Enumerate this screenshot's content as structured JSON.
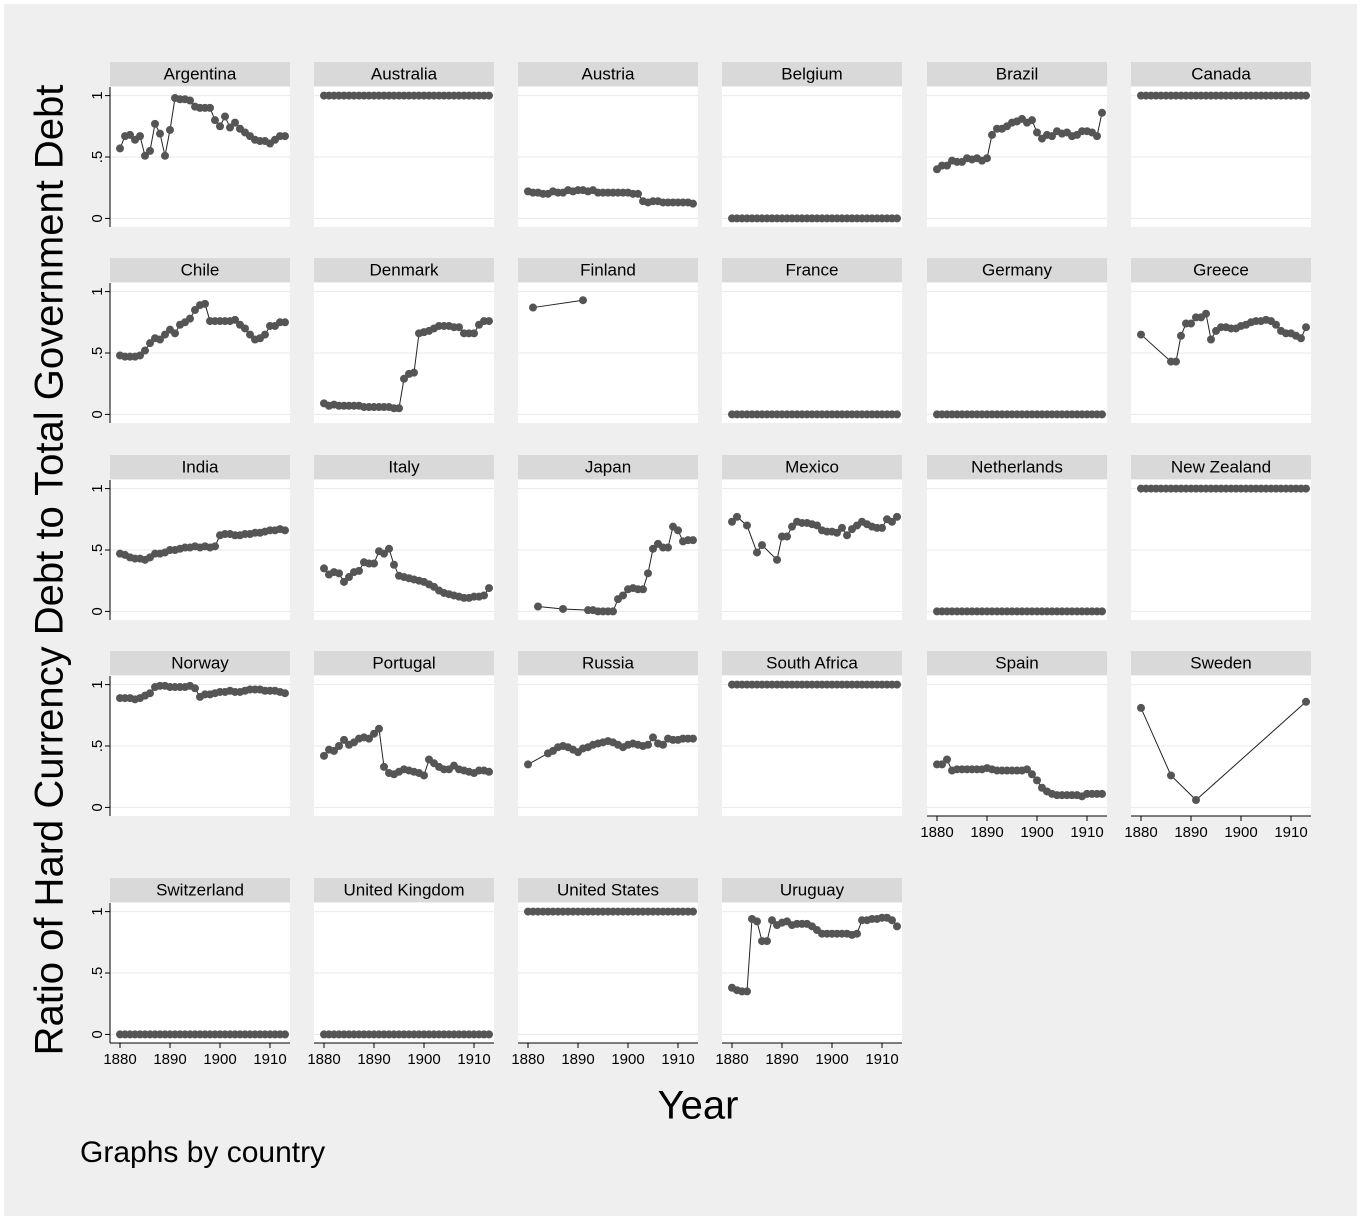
{
  "chart_data": {
    "type": "line",
    "ytitle": "Ratio of Hard Currency Debt to Total Government Debt",
    "xtitle": "Year",
    "note": "Graphs by country",
    "color": "#555555",
    "line_color": "#222222",
    "markers": true,
    "grid": true,
    "xlim": [
      1878,
      1914
    ],
    "ylim": [
      -0.07,
      1.07
    ],
    "xticks": [
      1880,
      1890,
      1900,
      1910
    ],
    "yticks": [
      0,
      {
        "value": 0.5,
        "label": ".5"
      },
      1
    ],
    "x": [
      1880,
      1881,
      1882,
      1883,
      1884,
      1885,
      1886,
      1887,
      1888,
      1889,
      1890,
      1891,
      1892,
      1893,
      1894,
      1895,
      1896,
      1897,
      1898,
      1899,
      1900,
      1901,
      1902,
      1903,
      1904,
      1905,
      1906,
      1907,
      1908,
      1909,
      1910,
      1911,
      1912,
      1913
    ],
    "panels": [
      {
        "title": "Argentina",
        "values": [
          0.57,
          0.67,
          0.68,
          0.64,
          0.67,
          0.51,
          0.55,
          0.77,
          0.69,
          0.51,
          0.72,
          0.98,
          0.97,
          0.97,
          0.96,
          0.91,
          0.9,
          0.9,
          0.9,
          0.8,
          0.75,
          0.83,
          0.74,
          0.78,
          0.73,
          0.7,
          0.67,
          0.64,
          0.63,
          0.63,
          0.61,
          0.64,
          0.67,
          0.67
        ]
      },
      {
        "title": "Australia",
        "values": [
          1,
          1,
          1,
          1,
          1,
          1,
          1,
          1,
          1,
          1,
          1,
          1,
          1,
          1,
          1,
          1,
          1,
          1,
          1,
          1,
          1,
          1,
          1,
          1,
          1,
          1,
          1,
          1,
          1,
          1,
          1,
          1,
          1,
          1
        ]
      },
      {
        "title": "Austria",
        "values": [
          0.22,
          0.21,
          0.21,
          0.2,
          0.2,
          0.22,
          0.21,
          0.21,
          0.23,
          0.22,
          0.23,
          0.23,
          0.22,
          0.23,
          0.21,
          0.21,
          0.21,
          0.21,
          0.21,
          0.21,
          0.21,
          0.2,
          0.2,
          0.14,
          0.13,
          0.14,
          0.14,
          0.13,
          0.13,
          0.13,
          0.13,
          0.13,
          0.13,
          0.12
        ]
      },
      {
        "title": "Belgium",
        "values": [
          0,
          0,
          0,
          0,
          0,
          0,
          0,
          0,
          0,
          0,
          0,
          0,
          0,
          0,
          0,
          0,
          0,
          0,
          0,
          0,
          0,
          0,
          0,
          0,
          0,
          0,
          0,
          0,
          0,
          0,
          0,
          0,
          0,
          0
        ]
      },
      {
        "title": "Brazil",
        "values": [
          0.4,
          0.43,
          0.43,
          0.47,
          0.46,
          0.46,
          0.49,
          0.48,
          0.49,
          0.47,
          0.49,
          0.68,
          0.73,
          0.73,
          0.75,
          0.78,
          0.79,
          0.81,
          0.78,
          0.8,
          0.7,
          0.65,
          0.68,
          0.67,
          0.71,
          0.69,
          0.7,
          0.67,
          0.68,
          0.71,
          0.71,
          0.7,
          0.67,
          0.86
        ]
      },
      {
        "title": "Canada",
        "values": [
          1,
          1,
          1,
          1,
          1,
          1,
          1,
          1,
          1,
          1,
          1,
          1,
          1,
          1,
          1,
          1,
          1,
          1,
          1,
          1,
          1,
          1,
          1,
          1,
          1,
          1,
          1,
          1,
          1,
          1,
          1,
          1,
          1,
          1
        ]
      },
      {
        "title": "Chile",
        "values": [
          0.48,
          0.47,
          0.47,
          0.47,
          0.48,
          0.52,
          0.58,
          0.62,
          0.61,
          0.65,
          0.69,
          0.66,
          0.73,
          0.75,
          0.78,
          0.85,
          0.89,
          0.9,
          0.76,
          0.76,
          0.76,
          0.76,
          0.76,
          0.77,
          0.73,
          0.7,
          0.65,
          0.61,
          0.62,
          0.65,
          0.72,
          0.72,
          0.75,
          0.75
        ]
      },
      {
        "title": "Denmark",
        "values": [
          0.09,
          0.07,
          0.08,
          0.07,
          0.07,
          0.07,
          0.07,
          0.07,
          0.06,
          0.06,
          0.06,
          0.06,
          0.06,
          0.06,
          0.05,
          0.05,
          0.29,
          0.33,
          0.34,
          0.66,
          0.67,
          0.68,
          0.7,
          0.72,
          0.72,
          0.72,
          0.71,
          0.71,
          0.66,
          0.66,
          0.66,
          0.73,
          0.76,
          0.76
        ]
      },
      {
        "title": "Finland",
        "x": [
          1881,
          1891
        ],
        "values": [
          0.87,
          0.93
        ]
      },
      {
        "title": "France",
        "values": [
          0,
          0,
          0,
          0,
          0,
          0,
          0,
          0,
          0,
          0,
          0,
          0,
          0,
          0,
          0,
          0,
          0,
          0,
          0,
          0,
          0,
          0,
          0,
          0,
          0,
          0,
          0,
          0,
          0,
          0,
          0,
          0,
          0,
          0
        ]
      },
      {
        "title": "Germany",
        "values": [
          0,
          0,
          0,
          0,
          0,
          0,
          0,
          0,
          0,
          0,
          0,
          0,
          0,
          0,
          0,
          0,
          0,
          0,
          0,
          0,
          0,
          0,
          0,
          0,
          0,
          0,
          0,
          0,
          0,
          0,
          0,
          0,
          0,
          0
        ]
      },
      {
        "title": "Greece",
        "x": [
          1880,
          1886,
          1887,
          1888,
          1889,
          1890,
          1891,
          1892,
          1893,
          1894,
          1895,
          1896,
          1897,
          1898,
          1899,
          1900,
          1901,
          1902,
          1903,
          1904,
          1905,
          1906,
          1907,
          1908,
          1909,
          1910,
          1911,
          1912,
          1913
        ],
        "values": [
          0.65,
          0.43,
          0.43,
          0.64,
          0.74,
          0.74,
          0.79,
          0.79,
          0.82,
          0.61,
          0.68,
          0.71,
          0.71,
          0.7,
          0.7,
          0.72,
          0.73,
          0.75,
          0.76,
          0.76,
          0.77,
          0.76,
          0.73,
          0.68,
          0.66,
          0.66,
          0.64,
          0.62,
          0.71
        ]
      },
      {
        "title": "India",
        "values": [
          0.47,
          0.46,
          0.44,
          0.43,
          0.43,
          0.42,
          0.44,
          0.47,
          0.47,
          0.48,
          0.5,
          0.5,
          0.51,
          0.52,
          0.52,
          0.53,
          0.52,
          0.53,
          0.52,
          0.53,
          0.62,
          0.63,
          0.63,
          0.62,
          0.62,
          0.63,
          0.63,
          0.64,
          0.64,
          0.65,
          0.66,
          0.66,
          0.67,
          0.66
        ]
      },
      {
        "title": "Italy",
        "values": [
          0.35,
          0.3,
          0.32,
          0.31,
          0.24,
          0.28,
          0.32,
          0.33,
          0.4,
          0.39,
          0.39,
          0.49,
          0.47,
          0.51,
          0.38,
          0.29,
          0.28,
          0.27,
          0.26,
          0.25,
          0.24,
          0.22,
          0.2,
          0.17,
          0.15,
          0.14,
          0.13,
          0.12,
          0.11,
          0.11,
          0.12,
          0.12,
          0.13,
          0.19
        ]
      },
      {
        "title": "Japan",
        "x": [
          1882,
          1887,
          1892,
          1893,
          1894,
          1895,
          1896,
          1897,
          1898,
          1899,
          1900,
          1901,
          1902,
          1903,
          1904,
          1905,
          1906,
          1907,
          1908,
          1909,
          1910,
          1911,
          1912,
          1913
        ],
        "values": [
          0.04,
          0.02,
          0.01,
          0.01,
          0.0,
          0.0,
          0.0,
          0.0,
          0.1,
          0.13,
          0.18,
          0.19,
          0.18,
          0.18,
          0.31,
          0.51,
          0.55,
          0.52,
          0.52,
          0.69,
          0.66,
          0.57,
          0.58,
          0.58
        ]
      },
      {
        "title": "Mexico",
        "x": [
          1880,
          1881,
          1883,
          1885,
          1886,
          1889,
          1890,
          1891,
          1892,
          1893,
          1894,
          1895,
          1896,
          1897,
          1898,
          1899,
          1900,
          1901,
          1902,
          1903,
          1904,
          1905,
          1906,
          1907,
          1908,
          1909,
          1910,
          1911,
          1912,
          1913
        ],
        "values": [
          0.73,
          0.77,
          0.7,
          0.48,
          0.54,
          0.42,
          0.61,
          0.61,
          0.69,
          0.73,
          0.72,
          0.72,
          0.71,
          0.7,
          0.66,
          0.65,
          0.65,
          0.64,
          0.68,
          0.62,
          0.67,
          0.7,
          0.73,
          0.71,
          0.69,
          0.68,
          0.68,
          0.75,
          0.73,
          0.77
        ]
      },
      {
        "title": "Netherlands",
        "values": [
          0,
          0,
          0,
          0,
          0,
          0,
          0,
          0,
          0,
          0,
          0,
          0,
          0,
          0,
          0,
          0,
          0,
          0,
          0,
          0,
          0,
          0,
          0,
          0,
          0,
          0,
          0,
          0,
          0,
          0,
          0,
          0,
          0,
          0
        ]
      },
      {
        "title": "New Zealand",
        "values": [
          1,
          1,
          1,
          1,
          1,
          1,
          1,
          1,
          1,
          1,
          1,
          1,
          1,
          1,
          1,
          1,
          1,
          1,
          1,
          1,
          1,
          1,
          1,
          1,
          1,
          1,
          1,
          1,
          1,
          1,
          1,
          1,
          1,
          1
        ]
      },
      {
        "title": "Norway",
        "values": [
          0.89,
          0.89,
          0.89,
          0.88,
          0.89,
          0.91,
          0.93,
          0.98,
          0.99,
          0.99,
          0.98,
          0.98,
          0.98,
          0.98,
          0.99,
          0.97,
          0.9,
          0.92,
          0.92,
          0.93,
          0.94,
          0.94,
          0.95,
          0.94,
          0.94,
          0.95,
          0.96,
          0.96,
          0.96,
          0.95,
          0.95,
          0.95,
          0.94,
          0.93
        ]
      },
      {
        "title": "Portugal",
        "values": [
          0.42,
          0.47,
          0.46,
          0.5,
          0.55,
          0.51,
          0.53,
          0.56,
          0.57,
          0.56,
          0.6,
          0.64,
          0.33,
          0.28,
          0.27,
          0.29,
          0.31,
          0.3,
          0.29,
          0.28,
          0.26,
          0.39,
          0.36,
          0.33,
          0.31,
          0.31,
          0.34,
          0.31,
          0.3,
          0.29,
          0.28,
          0.3,
          0.3,
          0.29
        ]
      },
      {
        "title": "Russia",
        "x": [
          1880,
          1884,
          1885,
          1886,
          1887,
          1888,
          1889,
          1890,
          1891,
          1892,
          1893,
          1894,
          1895,
          1896,
          1897,
          1898,
          1899,
          1900,
          1901,
          1902,
          1903,
          1904,
          1905,
          1906,
          1907,
          1908,
          1909,
          1910,
          1911,
          1912,
          1913
        ],
        "values": [
          0.35,
          0.44,
          0.46,
          0.49,
          0.5,
          0.49,
          0.47,
          0.45,
          0.48,
          0.49,
          0.51,
          0.52,
          0.53,
          0.54,
          0.53,
          0.51,
          0.49,
          0.51,
          0.52,
          0.51,
          0.5,
          0.51,
          0.57,
          0.52,
          0.51,
          0.56,
          0.55,
          0.55,
          0.56,
          0.56,
          0.56
        ]
      },
      {
        "title": "South Africa",
        "values": [
          1,
          1,
          1,
          1,
          1,
          1,
          1,
          1,
          1,
          1,
          1,
          1,
          1,
          1,
          1,
          1,
          1,
          1,
          1,
          1,
          1,
          1,
          1,
          1,
          1,
          1,
          1,
          1,
          1,
          1,
          1,
          1,
          1,
          1
        ]
      },
      {
        "title": "Spain",
        "values": [
          0.35,
          0.35,
          0.39,
          0.3,
          0.31,
          0.31,
          0.31,
          0.31,
          0.31,
          0.31,
          0.32,
          0.31,
          0.3,
          0.3,
          0.3,
          0.3,
          0.3,
          0.3,
          0.31,
          0.27,
          0.22,
          0.16,
          0.13,
          0.11,
          0.1,
          0.1,
          0.1,
          0.1,
          0.1,
          0.09,
          0.11,
          0.11,
          0.11,
          0.11
        ]
      },
      {
        "title": "Sweden",
        "x": [
          1880,
          1886,
          1891,
          1913
        ],
        "values": [
          0.81,
          0.26,
          0.06,
          0.86
        ]
      },
      {
        "title": "Switzerland",
        "values": [
          0,
          0,
          0,
          0,
          0,
          0,
          0,
          0,
          0,
          0,
          0,
          0,
          0,
          0,
          0,
          0,
          0,
          0,
          0,
          0,
          0,
          0,
          0,
          0,
          0,
          0,
          0,
          0,
          0,
          0,
          0,
          0,
          0,
          0
        ]
      },
      {
        "title": "United Kingdom",
        "values": [
          0,
          0,
          0,
          0,
          0,
          0,
          0,
          0,
          0,
          0,
          0,
          0,
          0,
          0,
          0,
          0,
          0,
          0,
          0,
          0,
          0,
          0,
          0,
          0,
          0,
          0,
          0,
          0,
          0,
          0,
          0,
          0,
          0,
          0
        ]
      },
      {
        "title": "United States",
        "values": [
          1,
          1,
          1,
          1,
          1,
          1,
          1,
          1,
          1,
          1,
          1,
          1,
          1,
          1,
          1,
          1,
          1,
          1,
          1,
          1,
          1,
          1,
          1,
          1,
          1,
          1,
          1,
          1,
          1,
          1,
          1,
          1,
          1,
          1
        ]
      },
      {
        "title": "Uruguay",
        "values": [
          0.38,
          0.36,
          0.35,
          0.35,
          0.94,
          0.92,
          0.76,
          0.76,
          0.93,
          0.89,
          0.91,
          0.92,
          0.89,
          0.9,
          0.9,
          0.9,
          0.88,
          0.85,
          0.82,
          0.82,
          0.82,
          0.82,
          0.82,
          0.82,
          0.81,
          0.82,
          0.93,
          0.93,
          0.94,
          0.94,
          0.95,
          0.95,
          0.93,
          0.88
        ]
      }
    ]
  }
}
